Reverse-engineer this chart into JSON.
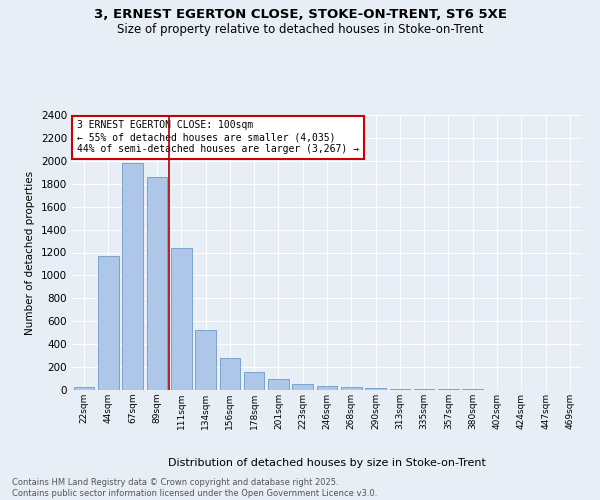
{
  "title": "3, ERNEST EGERTON CLOSE, STOKE-ON-TRENT, ST6 5XE",
  "subtitle": "Size of property relative to detached houses in Stoke-on-Trent",
  "xlabel": "Distribution of detached houses by size in Stoke-on-Trent",
  "ylabel": "Number of detached properties",
  "categories": [
    "22sqm",
    "44sqm",
    "67sqm",
    "89sqm",
    "111sqm",
    "134sqm",
    "156sqm",
    "178sqm",
    "201sqm",
    "223sqm",
    "246sqm",
    "268sqm",
    "290sqm",
    "313sqm",
    "335sqm",
    "357sqm",
    "380sqm",
    "402sqm",
    "424sqm",
    "447sqm",
    "469sqm"
  ],
  "values": [
    25,
    1170,
    1980,
    1855,
    1240,
    520,
    275,
    155,
    100,
    55,
    35,
    25,
    15,
    10,
    8,
    5,
    5,
    3,
    2,
    2,
    2
  ],
  "bar_color": "#aec6e8",
  "bar_edge_color": "#5a8fc0",
  "bg_color": "#e8eef5",
  "grid_color": "#ffffff",
  "vline_x_index": 4,
  "vline_color": "#aa0000",
  "annotation_title": "3 ERNEST EGERTON CLOSE: 100sqm",
  "annotation_line1": "← 55% of detached houses are smaller (4,035)",
  "annotation_line2": "44% of semi-detached houses are larger (3,267) →",
  "annotation_box_color": "#ffffff",
  "annotation_box_edge": "#cc0000",
  "ylim": [
    0,
    2400
  ],
  "yticks": [
    0,
    200,
    400,
    600,
    800,
    1000,
    1200,
    1400,
    1600,
    1800,
    2000,
    2200,
    2400
  ],
  "footer_line1": "Contains HM Land Registry data © Crown copyright and database right 2025.",
  "footer_line2": "Contains public sector information licensed under the Open Government Licence v3.0.",
  "title_fontsize": 9.5,
  "subtitle_fontsize": 8.5
}
